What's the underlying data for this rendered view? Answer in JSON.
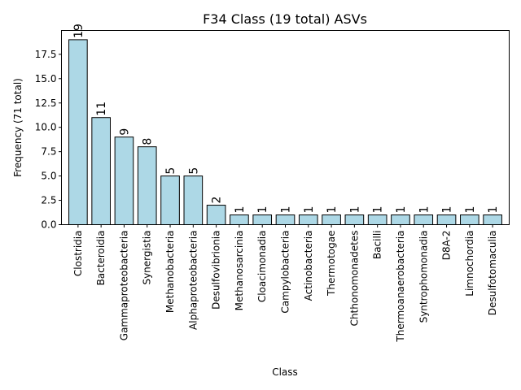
{
  "chart_data": {
    "type": "bar",
    "title": "F34 Class (19 total) ASVs",
    "xlabel": "Class",
    "ylabel": "Frequency (71 total)",
    "categories": [
      "Clostridia",
      "Bacteroidia",
      "Gammaproteobacteria",
      "Synergistia",
      "Methanobacteria",
      "Alphaproteobacteria",
      "Desulfovibrionia",
      "Methanosarcinia",
      "Cloacimonadia",
      "Campylobacteria",
      "Actinobacteria",
      "Thermotogae",
      "Chthonomonadetes",
      "Bacilli",
      "Thermoanaerobacteria",
      "Syntrophomonadia",
      "D8A-2",
      "Limnochordia",
      "Desulfotomaculia"
    ],
    "values": [
      19,
      11,
      9,
      8,
      5,
      5,
      2,
      1,
      1,
      1,
      1,
      1,
      1,
      1,
      1,
      1,
      1,
      1,
      1
    ],
    "data_labels": [
      "19",
      "11",
      "9",
      "8",
      "5",
      "5",
      "2",
      "1",
      "1",
      "1",
      "1",
      "1",
      "1",
      "1",
      "1",
      "1",
      "1",
      "1",
      "1"
    ],
    "ylim": [
      0,
      19.95
    ],
    "yticks": [
      0.0,
      2.5,
      5.0,
      7.5,
      10.0,
      12.5,
      15.0,
      17.5
    ],
    "ytick_labels": [
      "0.0",
      "2.5",
      "5.0",
      "7.5",
      "10.0",
      "12.5",
      "15.0",
      "17.5"
    ],
    "bar_color": "#add8e6",
    "edge_color": "#000000",
    "grid": false,
    "legend": "none"
  }
}
